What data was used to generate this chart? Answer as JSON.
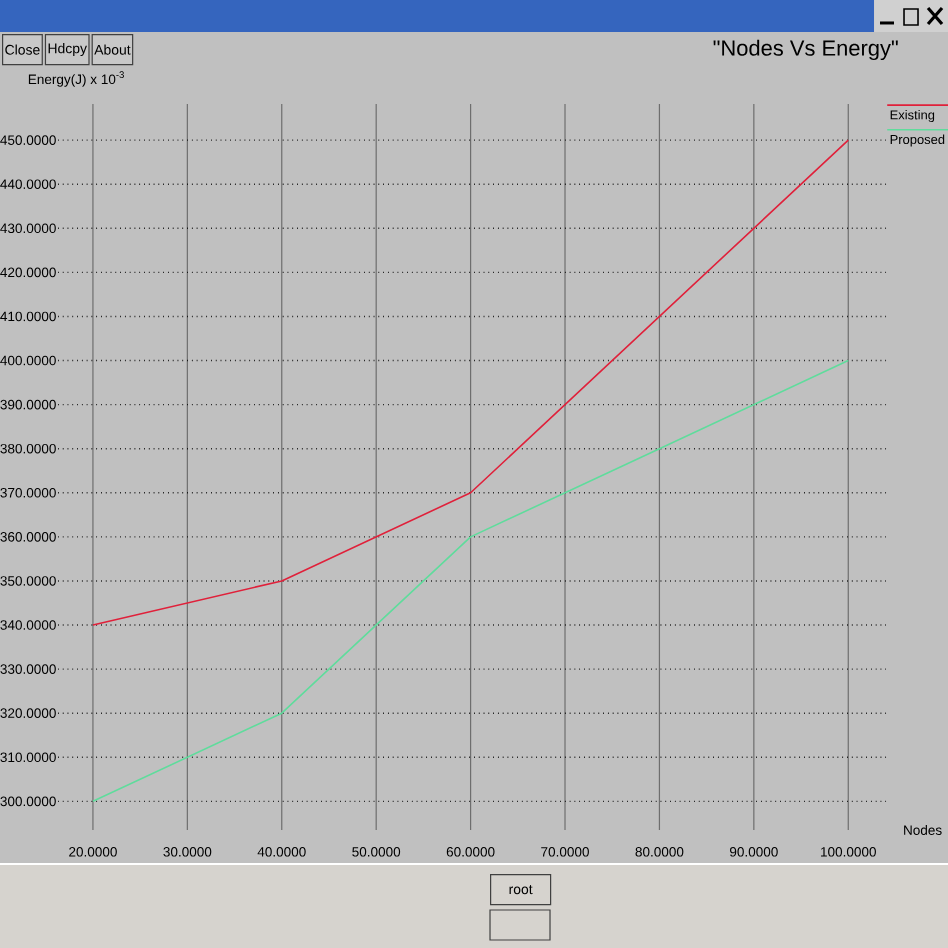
{
  "chart_data": {
    "type": "line",
    "title": "\"Nodes Vs Energy\"",
    "xlabel": "Nodes",
    "ylabel": "Energy(J) x 10$^{-3}$",
    "x": [
      20,
      40,
      60,
      80,
      100
    ],
    "series": [
      {
        "name": "Existing",
        "color": "#e0203a",
        "values": [
          340,
          350,
          370,
          410,
          450
        ]
      },
      {
        "name": "Proposed",
        "color": "#5fdc9c",
        "values": [
          300,
          320,
          360,
          380,
          400
        ]
      }
    ],
    "xlim": [
      16.3,
      104
    ],
    "ylim": [
      293.5,
      458.2
    ],
    "xticks": [
      {
        "value": 20,
        "label": "20.0000"
      },
      {
        "value": 30,
        "label": "30.0000"
      },
      {
        "value": 40,
        "label": "40.0000"
      },
      {
        "value": 50,
        "label": "50.0000"
      },
      {
        "value": 60,
        "label": "60.0000"
      },
      {
        "value": 70,
        "label": "70.0000"
      },
      {
        "value": 80,
        "label": "80.0000"
      },
      {
        "value": 90,
        "label": "90.0000"
      },
      {
        "value": 100,
        "label": "100.0000"
      }
    ],
    "yticks": [
      {
        "value": 300,
        "label": "300.0000"
      },
      {
        "value": 310,
        "label": "310.0000"
      },
      {
        "value": 320,
        "label": "320.0000"
      },
      {
        "value": 330,
        "label": "330.0000"
      },
      {
        "value": 340,
        "label": "340.0000"
      },
      {
        "value": 350,
        "label": "350.0000"
      },
      {
        "value": 360,
        "label": "360.0000"
      },
      {
        "value": 370,
        "label": "370.0000"
      },
      {
        "value": 380,
        "label": "380.0000"
      },
      {
        "value": 390,
        "label": "390.0000"
      },
      {
        "value": 400,
        "label": "400.0000"
      },
      {
        "value": 410,
        "label": "410.0000"
      },
      {
        "value": 420,
        "label": "420.0000"
      },
      {
        "value": 430,
        "label": "430.0000"
      },
      {
        "value": 440,
        "label": "440.0000"
      },
      {
        "value": 450,
        "label": "450.0000"
      }
    ],
    "grid": true,
    "legend": "top right",
    "annotations": [
      "Close",
      "Hdcpy",
      "About",
      "root"
    ]
  }
}
